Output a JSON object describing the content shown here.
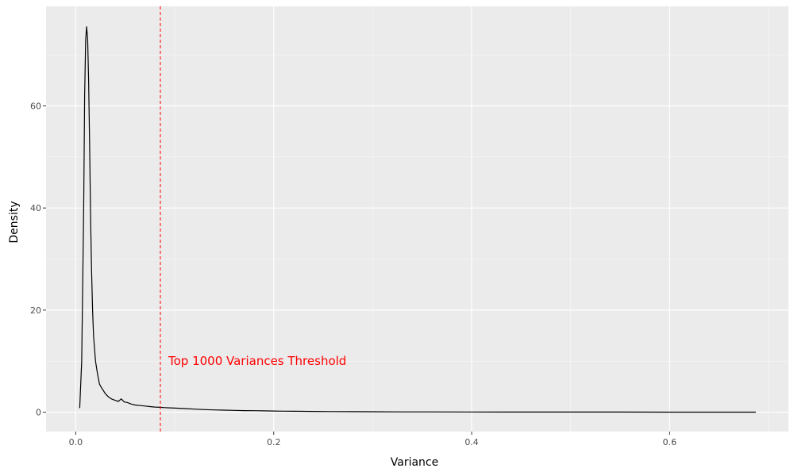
{
  "chart_data": {
    "type": "line",
    "title": "",
    "xlabel": "Variance",
    "ylabel": "Density",
    "xlim": [
      -0.03,
      0.72
    ],
    "ylim": [
      -3.8,
      79.5
    ],
    "x_ticks": [
      0.0,
      0.2,
      0.4,
      0.6
    ],
    "x_tick_labels": [
      "0.0",
      "0.2",
      "0.4",
      "0.6"
    ],
    "y_ticks": [
      0,
      20,
      40,
      60
    ],
    "y_tick_labels": [
      "0",
      "20",
      "40",
      "60"
    ],
    "grid": true,
    "background": "#ebebeb",
    "series": [
      {
        "color": "#000000",
        "x": [
          0.004,
          0.006,
          0.008,
          0.009,
          0.01,
          0.011,
          0.012,
          0.013,
          0.014,
          0.015,
          0.016,
          0.017,
          0.018,
          0.02,
          0.022,
          0.024,
          0.026,
          0.028,
          0.03,
          0.033,
          0.036,
          0.04,
          0.043,
          0.046,
          0.049,
          0.052,
          0.056,
          0.06,
          0.065,
          0.07,
          0.075,
          0.08,
          0.085,
          0.09,
          0.095,
          0.1,
          0.11,
          0.12,
          0.13,
          0.14,
          0.15,
          0.16,
          0.17,
          0.18,
          0.19,
          0.2,
          0.21,
          0.22,
          0.24,
          0.26,
          0.28,
          0.3,
          0.33,
          0.36,
          0.4,
          0.45,
          0.5,
          0.55,
          0.6,
          0.65,
          0.687
        ],
        "y": [
          0.8,
          10,
          40,
          62,
          73,
          75.5,
          73,
          65,
          52,
          38,
          28,
          20,
          15,
          10,
          7.5,
          5.5,
          4.8,
          4.2,
          3.6,
          3.0,
          2.6,
          2.3,
          2.1,
          2.6,
          2.0,
          1.9,
          1.6,
          1.4,
          1.3,
          1.2,
          1.1,
          1.0,
          0.95,
          0.9,
          0.85,
          0.8,
          0.7,
          0.6,
          0.5,
          0.45,
          0.4,
          0.35,
          0.3,
          0.28,
          0.25,
          0.22,
          0.2,
          0.18,
          0.15,
          0.12,
          0.1,
          0.08,
          0.06,
          0.05,
          0.04,
          0.03,
          0.02,
          0.02,
          0.01,
          0.01,
          0.01
        ]
      }
    ],
    "threshold": {
      "x": 0.0855,
      "color": "#ff0000",
      "style": "dashed",
      "label": "Top 1000 Variances Threshold",
      "label_y": 10
    }
  }
}
